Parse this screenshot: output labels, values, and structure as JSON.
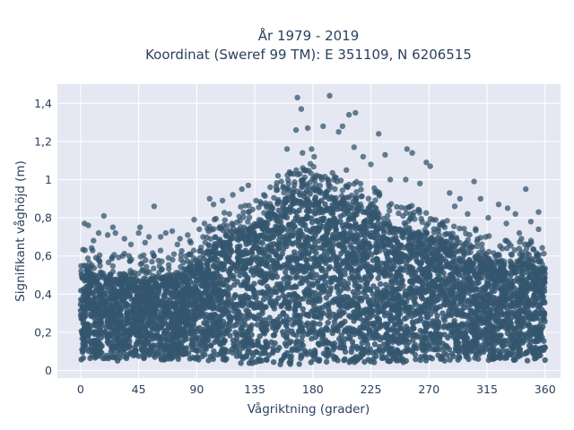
{
  "chart_data": {
    "type": "scatter",
    "title_line1": "År 1979 - 2019",
    "title_line2": "Koordinat (Sweref 99 TM): E 351109, N 6206515",
    "xlabel": "Vågriktning (grader)",
    "ylabel": "Signifikant våghöjd (m)",
    "xlim": [
      -18,
      372
    ],
    "ylim": [
      -0.04,
      1.5
    ],
    "x_ticks": [
      0,
      45,
      90,
      135,
      180,
      225,
      270,
      315,
      360
    ],
    "x_tick_labels": [
      "0",
      "45",
      "90",
      "135",
      "180",
      "225",
      "270",
      "315",
      "360"
    ],
    "y_ticks": [
      0,
      0.2,
      0.4,
      0.6,
      0.8,
      1.0,
      1.2,
      1.4
    ],
    "y_tick_labels": [
      "0",
      "0,2",
      "0,4",
      "0,6",
      "0,8",
      "1",
      "1,2",
      "1,4"
    ],
    "grid": true,
    "colors": {
      "marker": "#34566e",
      "plot_bg": "#e5e8f2",
      "grid": "#ffffff"
    },
    "envelope": {
      "direction": [
        0,
        10,
        20,
        30,
        45,
        60,
        75,
        90,
        105,
        120,
        135,
        150,
        165,
        180,
        195,
        210,
        225,
        240,
        255,
        270,
        285,
        300,
        315,
        330,
        345,
        360
      ],
      "dense_upper": [
        0.52,
        0.5,
        0.48,
        0.47,
        0.46,
        0.48,
        0.5,
        0.55,
        0.65,
        0.72,
        0.75,
        0.85,
        0.92,
        0.95,
        0.9,
        0.85,
        0.82,
        0.75,
        0.72,
        0.7,
        0.65,
        0.6,
        0.58,
        0.55,
        0.55,
        0.52
      ],
      "dense_lower": [
        0.05,
        0.05,
        0.05,
        0.05,
        0.05,
        0.05,
        0.05,
        0.05,
        0.05,
        0.04,
        0.03,
        0.03,
        0.03,
        0.04,
        0.04,
        0.04,
        0.04,
        0.04,
        0.04,
        0.05,
        0.05,
        0.05,
        0.05,
        0.05,
        0.05,
        0.05
      ]
    },
    "outliers": [
      [
        168,
        1.43
      ],
      [
        193,
        1.44
      ],
      [
        171,
        1.37
      ],
      [
        213,
        1.35
      ],
      [
        208,
        1.34
      ],
      [
        167,
        1.26
      ],
      [
        176,
        1.27
      ],
      [
        200,
        1.25
      ],
      [
        231,
        1.24
      ],
      [
        188,
        1.28
      ],
      [
        203,
        1.28
      ],
      [
        212,
        1.17
      ],
      [
        160,
        1.16
      ],
      [
        179,
        1.16
      ],
      [
        253,
        1.16
      ],
      [
        257,
        1.14
      ],
      [
        236,
        1.13
      ],
      [
        172,
        1.14
      ],
      [
        181,
        1.12
      ],
      [
        219,
        1.12
      ],
      [
        268,
        1.09
      ],
      [
        271,
        1.07
      ],
      [
        225,
        1.08
      ],
      [
        206,
        1.05
      ],
      [
        305,
        0.99
      ],
      [
        252,
        1.0
      ],
      [
        163,
        1.03
      ],
      [
        170,
        1.03
      ],
      [
        345,
        0.95
      ],
      [
        198,
        1.01
      ],
      [
        240,
        1.0
      ],
      [
        263,
        0.98
      ],
      [
        286,
        0.93
      ],
      [
        294,
        0.9
      ],
      [
        310,
        0.9
      ],
      [
        324,
        0.87
      ],
      [
        331,
        0.85
      ],
      [
        300,
        0.82
      ],
      [
        355,
        0.83
      ],
      [
        290,
        0.86
      ],
      [
        337,
        0.82
      ],
      [
        349,
        0.78
      ],
      [
        355,
        0.74
      ],
      [
        330,
        0.77
      ],
      [
        340,
        0.72
      ],
      [
        316,
        0.8
      ],
      [
        100,
        0.9
      ],
      [
        103,
        0.87
      ],
      [
        110,
        0.89
      ],
      [
        118,
        0.92
      ],
      [
        125,
        0.95
      ],
      [
        130,
        0.97
      ],
      [
        136,
        0.89
      ],
      [
        142,
        0.92
      ],
      [
        147,
        0.96
      ],
      [
        153,
        1.02
      ],
      [
        57,
        0.86
      ],
      [
        18,
        0.81
      ],
      [
        88,
        0.79
      ],
      [
        46,
        0.75
      ],
      [
        3,
        0.77
      ],
      [
        6,
        0.76
      ],
      [
        14,
        0.72
      ],
      [
        21,
        0.71
      ],
      [
        27,
        0.72
      ],
      [
        34,
        0.69
      ],
      [
        45,
        0.72
      ],
      [
        53,
        0.7
      ],
      [
        62,
        0.7
      ],
      [
        66,
        0.72
      ],
      [
        71,
        0.73
      ],
      [
        77,
        0.69
      ],
      [
        83,
        0.71
      ],
      [
        92,
        0.74
      ],
      [
        96,
        0.77
      ],
      [
        39,
        0.66
      ],
      [
        25,
        0.75
      ],
      [
        10,
        0.68
      ],
      [
        50,
        0.67
      ],
      [
        75,
        0.66
      ]
    ]
  }
}
